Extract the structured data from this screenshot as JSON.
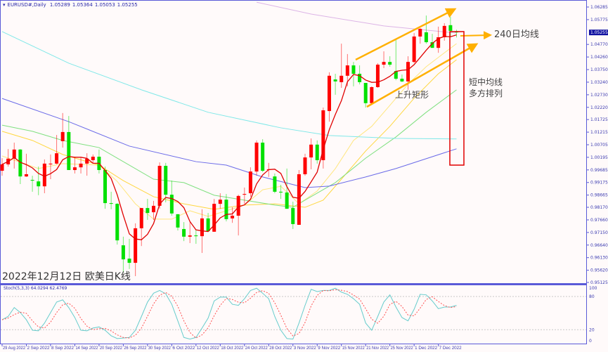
{
  "header": {
    "symbol": "EURUSD#,Daily",
    "open": "1.05289",
    "high": "1.05364",
    "low": "1.05053",
    "close": "1.05255"
  },
  "title": "2022年12月12日 欧美日K线",
  "stoch_label": {
    "name": "Stoch(5,3,3)",
    "main": "64.0294",
    "signal": "62.4769"
  },
  "annotations": {
    "ma240": "240日均线",
    "rising_rect": "上升矩形",
    "short_mid_1": "短中均线",
    "short_mid_2": "多方排列"
  },
  "colors": {
    "bull": "#ff0000",
    "bear": "#00e000",
    "ma5": "#e00000",
    "ma10": "#ffe680",
    "ma20": "#ffd740",
    "ma30": "#7fe07f",
    "ma60": "#6a6ae8",
    "ma120": "#7fe8e8",
    "ma240": "#dcb4e6",
    "stoch_main": "#66cccc",
    "stoch_signal": "#ff5050",
    "annotation_arrow": "#ffb000",
    "annotation_box": "#e00000",
    "frame": "#5a5ad8"
  },
  "chart_data": {
    "type": "candlestick",
    "symbol": "EURUSD#",
    "timeframe": "Daily",
    "ylim": [
      0.95125,
      1.06285
    ],
    "price_ticks": [
      "1.06285",
      "1.05775",
      "1.04770",
      "1.04260",
      "1.03750",
      "1.03240",
      "1.02730",
      "1.02220",
      "1.01725",
      "1.01215",
      "1.00705",
      "1.00195",
      "0.99685",
      "0.99175",
      "0.98665",
      "0.98170",
      "0.97660",
      "0.97150",
      "0.96640",
      "0.96130",
      "0.95620",
      "0.95125"
    ],
    "current_price": "1.05255",
    "date_labels": [
      {
        "bar": 0,
        "label": "29 Aug 2022"
      },
      {
        "bar": 4,
        "label": "2 Sep 2022"
      },
      {
        "bar": 8,
        "label": "8 Sep 2022"
      },
      {
        "bar": 12,
        "label": "14 Sep 2022"
      },
      {
        "bar": 16,
        "label": "20 Sep 2022"
      },
      {
        "bar": 20,
        "label": "26 Sep 2022"
      },
      {
        "bar": 24,
        "label": "30 Sep 2022"
      },
      {
        "bar": 28,
        "label": "6 Oct 2022"
      },
      {
        "bar": 32,
        "label": "12 Oct 2022"
      },
      {
        "bar": 36,
        "label": "18 Oct 2022"
      },
      {
        "bar": 40,
        "label": "24 Oct 2022"
      },
      {
        "bar": 44,
        "label": "28 Oct 2022"
      },
      {
        "bar": 48,
        "label": "3 Nov 2022"
      },
      {
        "bar": 52,
        "label": "9 Nov 2022"
      },
      {
        "bar": 56,
        "label": "15 Nov 2022"
      },
      {
        "bar": 60,
        "label": "21 Nov 2022"
      },
      {
        "bar": 64,
        "label": "25 Nov 2022"
      },
      {
        "bar": 68,
        "label": "1 Dec 2022"
      },
      {
        "bar": 72,
        "label": "7 Dec 2022"
      }
    ],
    "ohlc": [
      [
        0.9965,
        1.0016,
        0.9945,
        0.9991
      ],
      [
        0.9991,
        1.0053,
        0.9982,
        1.0014
      ],
      [
        1.0014,
        1.0079,
        0.9974,
        1.0051
      ],
      [
        1.0051,
        1.0053,
        0.9911,
        0.9942
      ],
      [
        0.9942,
        1.0034,
        0.994,
        0.9951
      ],
      [
        0.9928,
        0.9945,
        0.988,
        0.9925
      ],
      [
        0.9922,
        0.9982,
        0.9866,
        0.9902
      ],
      [
        0.9902,
        1.0011,
        0.9874,
        0.9994
      ],
      [
        0.9991,
        1.0031,
        0.9931,
        0.9994
      ],
      [
        0.9994,
        1.011,
        0.9991,
        1.0036
      ],
      [
        1.0085,
        1.0199,
        1.0059,
        1.0122
      ],
      [
        1.0122,
        1.0187,
        0.9968,
        0.9968
      ],
      [
        0.9968,
        1.0022,
        0.9954,
        0.9979
      ],
      [
        0.9979,
        1.0022,
        0.9954,
        0.9994
      ],
      [
        0.9994,
        1.0036,
        0.9945,
        1.0014
      ],
      [
        1.0008,
        1.0031,
        0.9994,
        1.0022
      ],
      [
        1.0022,
        1.0051,
        0.9954,
        0.9968
      ],
      [
        0.9968,
        0.9982,
        0.9811,
        0.9834
      ],
      [
        0.9834,
        0.988,
        0.9809,
        0.9831
      ],
      [
        0.9831,
        0.9834,
        0.9666,
        0.9683
      ],
      [
        0.9663,
        0.9698,
        0.9552,
        0.9606
      ],
      [
        0.9609,
        0.9689,
        0.9567,
        0.9592
      ],
      [
        0.9592,
        0.9752,
        0.9538,
        0.9732
      ],
      [
        0.9732,
        0.9814,
        0.966,
        0.9814
      ],
      [
        0.9814,
        0.9851,
        0.9766,
        0.9794
      ],
      [
        0.9797,
        0.9843,
        0.9766,
        0.9823
      ],
      [
        0.9823,
        0.9999,
        0.9811,
        0.9985
      ],
      [
        0.9985,
        0.9997,
        0.9837,
        0.9868
      ],
      [
        0.9868,
        0.9925,
        0.9783,
        0.9792
      ],
      [
        0.9789,
        0.9789,
        0.9723,
        0.9735
      ],
      [
        0.9729,
        0.9757,
        0.968,
        0.9698
      ],
      [
        0.9698,
        0.9757,
        0.9672,
        0.9703
      ],
      [
        0.9703,
        0.9726,
        0.9669,
        0.97
      ],
      [
        0.97,
        0.9809,
        0.9632,
        0.9772
      ],
      [
        0.9772,
        0.9794,
        0.9718,
        0.972
      ],
      [
        0.9718,
        0.9851,
        0.9718,
        0.9831
      ],
      [
        0.9831,
        0.9874,
        0.9811,
        0.9848
      ],
      [
        0.9848,
        0.9871,
        0.976,
        0.9769
      ],
      [
        0.9772,
        0.9817,
        0.9754,
        0.9783
      ],
      [
        0.9783,
        0.9868,
        0.9703,
        0.9863
      ],
      [
        0.9868,
        0.9897,
        0.9831,
        0.9871
      ],
      [
        0.9874,
        0.9979,
        0.986,
        0.9962
      ],
      [
        0.9962,
        1.0088,
        0.9945,
        1.0079
      ],
      [
        1.0079,
        1.0093,
        0.996,
        0.9965
      ],
      [
        0.9968,
        0.9997,
        0.994,
        0.9971
      ],
      [
        0.9942,
        0.9954,
        0.9874,
        0.988
      ],
      [
        0.988,
        0.9908,
        0.9851,
        0.9877
      ],
      [
        0.9877,
        0.9974,
        0.9811,
        0.9811
      ],
      [
        0.9814,
        0.984,
        0.9729,
        0.9749
      ],
      [
        0.9746,
        0.9968,
        0.9746,
        0.9951
      ],
      [
        0.9951,
        1.0034,
        0.9945,
        1.0019
      ],
      [
        1.0019,
        1.0096,
        0.9971,
        1.0071
      ],
      [
        1.0071,
        1.0088,
        0.9994,
        1.0008
      ],
      [
        1.0008,
        1.0221,
        0.9974,
        1.021
      ],
      [
        1.0207,
        1.0364,
        1.0164,
        1.035
      ],
      [
        1.0335,
        1.0358,
        1.0273,
        1.0327
      ],
      [
        1.0324,
        1.048,
        1.0301,
        1.035
      ],
      [
        1.035,
        1.0438,
        1.0307,
        1.0392
      ],
      [
        1.0392,
        1.0406,
        1.0307,
        1.0358
      ],
      [
        1.0358,
        1.0392,
        1.0315,
        1.0324
      ],
      [
        1.0321,
        1.0321,
        1.0221,
        1.0239
      ],
      [
        1.0239,
        1.0307,
        1.0239,
        1.0304
      ],
      [
        1.0304,
        1.0401,
        1.0301,
        1.0395
      ],
      [
        1.0395,
        1.0449,
        1.0381,
        1.0406
      ],
      [
        1.0406,
        1.0429,
        1.0387,
        1.0395
      ],
      [
        1.0369,
        1.0498,
        1.0332,
        1.0338
      ],
      [
        1.0338,
        1.0355,
        1.0324,
        1.0327
      ],
      [
        1.0327,
        1.0429,
        1.0293,
        1.0406
      ],
      [
        1.0406,
        1.0523,
        1.0401,
        1.0509
      ],
      [
        1.0509,
        1.0543,
        1.048,
        1.054
      ],
      [
        1.0526,
        1.0594,
        1.048,
        1.0486
      ],
      [
        1.0486,
        1.052,
        1.0463,
        1.0463
      ],
      [
        1.0463,
        1.0549,
        1.0443,
        1.0506
      ],
      [
        1.0506,
        1.0563,
        1.0492,
        1.0552
      ],
      [
        1.0555,
        1.0589,
        1.0506,
        1.0532
      ],
      [
        1.05289,
        1.05364,
        1.05053,
        1.05255
      ]
    ],
    "moving_averages": [
      {
        "key": "ma10",
        "points": [
          [
            0,
            1.0025
          ],
          [
            6,
            0.9974
          ],
          [
            10,
            0.9994
          ],
          [
            16,
            0.9988
          ],
          [
            19,
            0.9922
          ],
          [
            22,
            0.9831
          ],
          [
            25,
            0.9769
          ],
          [
            28,
            0.9769
          ],
          [
            31,
            0.9803
          ],
          [
            34,
            0.978
          ],
          [
            37,
            0.9803
          ],
          [
            40,
            0.9826
          ],
          [
            43,
            0.9888
          ],
          [
            46,
            0.9902
          ],
          [
            49,
            0.9831
          ],
          [
            52,
            0.9883
          ],
          [
            55,
            0.9974
          ],
          [
            58,
            1.0088
          ],
          [
            61,
            1.0145
          ],
          [
            64,
            1.023
          ],
          [
            67,
            1.0316
          ],
          [
            70,
            1.0387
          ],
          [
            73,
            1.0443
          ],
          [
            75,
            1.048
          ]
        ]
      },
      {
        "key": "ma20",
        "points": [
          [
            0,
            1.0125
          ],
          [
            5,
            1.0088
          ],
          [
            10,
            1.0031
          ],
          [
            16,
            0.9988
          ],
          [
            20,
            0.9925
          ],
          [
            25,
            0.986
          ],
          [
            30,
            0.9831
          ],
          [
            35,
            0.9809
          ],
          [
            40,
            0.9826
          ],
          [
            45,
            0.9831
          ],
          [
            50,
            0.9817
          ],
          [
            53,
            0.9846
          ],
          [
            56,
            0.9931
          ],
          [
            60,
            1.0045
          ],
          [
            64,
            1.0145
          ],
          [
            68,
            1.0259
          ],
          [
            72,
            1.0358
          ],
          [
            75,
            1.0415
          ]
        ]
      },
      {
        "key": "ma30",
        "points": [
          [
            0,
            1.015
          ],
          [
            5,
            1.0125
          ],
          [
            10,
            1.0088
          ],
          [
            16,
            1.0059
          ],
          [
            20,
            1.0002
          ],
          [
            25,
            0.9931
          ],
          [
            30,
            0.9917
          ],
          [
            35,
            0.9866
          ],
          [
            40,
            0.9846
          ],
          [
            45,
            0.9826
          ],
          [
            48,
            0.9817
          ],
          [
            50,
            0.9846
          ],
          [
            55,
            0.9917
          ],
          [
            60,
            1.0016
          ],
          [
            65,
            1.0102
          ],
          [
            70,
            1.0202
          ],
          [
            75,
            1.0293
          ]
        ]
      },
      {
        "key": "ma60",
        "points": [
          [
            0,
            1.0258
          ],
          [
            11,
            1.0164
          ],
          [
            21,
            1.0065
          ],
          [
            32,
            1.0002
          ],
          [
            37,
            0.9988
          ],
          [
            43,
            0.994
          ],
          [
            50,
            0.9897
          ],
          [
            54,
            0.9903
          ],
          [
            60,
            0.994
          ],
          [
            65,
            0.9974
          ],
          [
            75,
            1.0054
          ]
        ]
      },
      {
        "key": "ma120",
        "points": [
          [
            0,
            1.0529
          ],
          [
            11,
            1.0401
          ],
          [
            23,
            1.0293
          ],
          [
            34,
            1.0202
          ],
          [
            46,
            1.0139
          ],
          [
            54,
            1.0108
          ],
          [
            65,
            1.0096
          ],
          [
            75,
            1.0094
          ]
        ]
      },
      {
        "key": "ma240",
        "points": [
          [
            42,
            1.0648
          ],
          [
            51,
            1.06
          ],
          [
            63,
            1.0552
          ],
          [
            75,
            1.0523
          ]
        ]
      }
    ],
    "stochastic": {
      "ylim": [
        0,
        100
      ],
      "levels": [
        20,
        80
      ],
      "main": [
        38,
        44,
        60,
        51,
        38,
        19,
        18,
        32,
        51,
        70,
        74,
        60,
        42,
        19,
        18,
        23,
        25,
        19,
        9,
        4,
        5,
        6,
        19,
        44,
        70,
        86,
        91,
        85,
        66,
        36,
        6,
        3,
        6,
        23,
        41,
        72,
        79,
        79,
        66,
        64,
        76,
        91,
        95,
        86,
        76,
        44,
        19,
        4,
        3,
        32,
        64,
        93,
        89,
        91,
        91,
        95,
        88,
        84,
        76,
        66,
        32,
        19,
        44,
        70,
        83,
        61,
        42,
        36,
        57,
        84,
        83,
        72,
        58,
        61,
        61,
        64.03
      ]
    }
  }
}
